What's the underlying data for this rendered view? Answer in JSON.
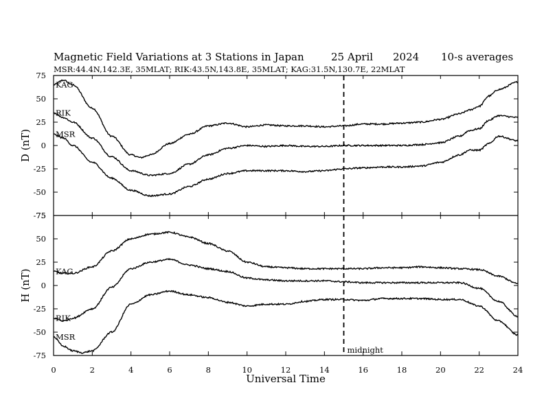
{
  "chart_data": {
    "type": "line",
    "title": "Magnetic Field Variations at 3 Stations in Japan",
    "date": "25  April",
    "year": "2024",
    "averaging": "10-s averages",
    "subtitle": "MSR:44.4N,142.3E, 35MLAT;  RIK:43.5N,143.8E, 35MLAT;  KAG:31.5N,130.7E, 22MLAT",
    "xlabel": "Universal Time",
    "xlim": [
      0,
      24
    ],
    "x_ticks": [
      "0",
      "2",
      "4",
      "6",
      "8",
      "10",
      "12",
      "14",
      "16",
      "18",
      "20",
      "22",
      "24"
    ],
    "annotation": {
      "x": 15,
      "label": "midnight",
      "style": "dashed"
    },
    "panels": [
      {
        "ylabel": "D (nT)",
        "ylim": [
          -75,
          75
        ],
        "y_ticks": [
          "75",
          "50",
          "25",
          "0",
          "-25",
          "-50",
          "-75"
        ],
        "series": [
          {
            "name": "KAG",
            "x": [
              0,
              0.5,
              1,
              2,
              3,
              4,
              4.5,
              5,
              6,
              7,
              8,
              9,
              10,
              11,
              12,
              13,
              14,
              15,
              16,
              17,
              18,
              19,
              20,
              21,
              21.5,
              22,
              22.5,
              23,
              24
            ],
            "y": [
              65,
              70,
              65,
              40,
              10,
              -10,
              -13,
              -10,
              2,
              12,
              21,
              24,
              20,
              22,
              21,
              21,
              20,
              21,
              23,
              23,
              24,
              25,
              28,
              34,
              38,
              42,
              53,
              60,
              68
            ]
          },
          {
            "name": "RIK",
            "x": [
              0,
              0.5,
              1,
              2,
              3,
              4,
              5,
              6,
              7,
              8,
              9,
              10,
              11,
              12,
              13,
              14,
              15,
              16,
              17,
              18,
              19,
              20,
              21,
              21.5,
              22,
              22.5,
              23,
              24
            ],
            "y": [
              35,
              30,
              25,
              8,
              -12,
              -27,
              -32,
              -30,
              -20,
              -10,
              -3,
              0,
              -1,
              0,
              -1,
              -1,
              0,
              0,
              0,
              0,
              1,
              3,
              10,
              16,
              18,
              27,
              32,
              30
            ]
          },
          {
            "name": "MSR",
            "x": [
              0,
              0.5,
              1,
              2,
              3,
              4,
              5,
              6,
              7,
              8,
              9,
              10,
              11,
              12,
              13,
              14,
              15,
              16,
              17,
              18,
              19,
              20,
              21,
              21.5,
              22,
              22.5,
              23,
              24
            ],
            "y": [
              12,
              8,
              0,
              -18,
              -35,
              -48,
              -54,
              -52,
              -44,
              -36,
              -30,
              -27,
              -27,
              -27,
              -28,
              -27,
              -25,
              -24,
              -23,
              -23,
              -22,
              -18,
              -10,
              -5,
              -5,
              2,
              10,
              5
            ]
          }
        ]
      },
      {
        "ylabel": "H (nT)",
        "ylim": [
          -75,
          75
        ],
        "y_ticks": [
          "75",
          "50",
          "25",
          "0",
          "-25",
          "-50",
          "-75"
        ],
        "series": [
          {
            "name": "KAG",
            "x": [
              0,
              0.5,
              1,
              2,
              3,
              4,
              5,
              6,
              7,
              8,
              9,
              10,
              11,
              12,
              13,
              14,
              15,
              16,
              17,
              18,
              19,
              20,
              21,
              22,
              23,
              24
            ],
            "y": [
              15,
              13,
              13,
              20,
              37,
              50,
              55,
              57,
              52,
              45,
              37,
              25,
              20,
              19,
              18,
              18,
              18,
              18,
              19,
              19,
              20,
              19,
              18,
              17,
              10,
              2
            ]
          },
          {
            "name": "RIK",
            "x": [
              0,
              0.5,
              1,
              2,
              3,
              4,
              5,
              6,
              7,
              8,
              9,
              10,
              11,
              12,
              13,
              14,
              15,
              16,
              17,
              18,
              19,
              20,
              21,
              22,
              23,
              24
            ],
            "y": [
              -35,
              -38,
              -35,
              -25,
              -2,
              18,
              25,
              28,
              22,
              18,
              15,
              8,
              6,
              5,
              5,
              5,
              4,
              3,
              3,
              3,
              3,
              3,
              3,
              -3,
              -17,
              -33
            ]
          },
          {
            "name": "MSR",
            "x": [
              0,
              0.5,
              1,
              1.5,
              2,
              3,
              4,
              5,
              6,
              7,
              8,
              9,
              10,
              11,
              12,
              13,
              14,
              15,
              16,
              17,
              18,
              19,
              20,
              21,
              22,
              23,
              24
            ],
            "y": [
              -55,
              -65,
              -70,
              -72,
              -70,
              -50,
              -20,
              -10,
              -6,
              -10,
              -13,
              -18,
              -22,
              -20,
              -20,
              -17,
              -15,
              -15,
              -16,
              -14,
              -14,
              -14,
              -15,
              -15,
              -22,
              -38,
              -53
            ]
          }
        ]
      }
    ]
  }
}
